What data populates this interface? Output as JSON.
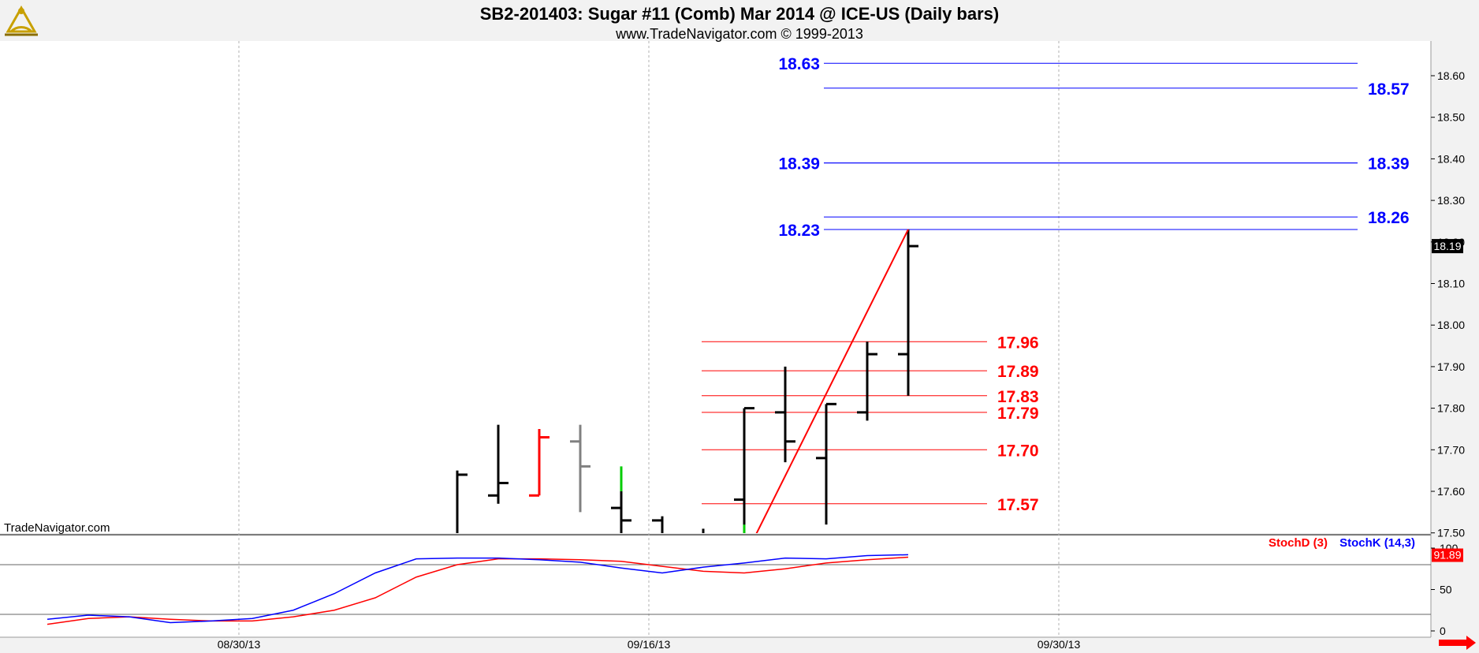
{
  "header": {
    "title": "SB2-201403:  Sugar #11 (Comb) Mar 2014 @ ICE-US  (Daily bars)",
    "subtitle": "www.TradeNavigator.com © 1999-2013"
  },
  "watermark": "TradeNavigator.com",
  "logo_icon": "sextant-logo-icon",
  "colors": {
    "up_bar": "#000000",
    "down_bar": "#ff0000",
    "neutral_bar": "#808080",
    "blue_level": "#0000ff",
    "red_level": "#ff0000",
    "stoch_k": "#0000ff",
    "stoch_d": "#ff0000",
    "last_price_bg": "#000000",
    "stoch_value_bg": "#ff0000"
  },
  "chart_data": [
    {
      "type": "bar",
      "subtype": "ohlc",
      "ylim": [
        17.48,
        18.68
      ],
      "y_ticks": [
        "17.50",
        "17.60",
        "17.70",
        "17.80",
        "17.90",
        "18.00",
        "18.10",
        "18.20",
        "18.30",
        "18.40",
        "18.50",
        "18.60"
      ],
      "x_tick_labels": [
        {
          "label": "08/30/13",
          "bar": 4
        },
        {
          "label": "09/16/13",
          "bar": 14
        },
        {
          "label": "09/30/13",
          "bar": 24
        }
      ],
      "last_price": "18.19",
      "bars": [
        {
          "i": 10,
          "o": 17.47,
          "h": 17.65,
          "l": 17.4,
          "c": 17.64,
          "color": "up"
        },
        {
          "i": 11,
          "o": 17.59,
          "h": 17.76,
          "l": 17.57,
          "c": 17.62,
          "color": "up"
        },
        {
          "i": 12,
          "o": 17.59,
          "h": 17.75,
          "l": 17.59,
          "c": 17.73,
          "color": "down"
        },
        {
          "i": 13,
          "o": 17.72,
          "h": 17.76,
          "l": 17.55,
          "c": 17.66,
          "color": "neutral"
        },
        {
          "i": 14,
          "o": 17.56,
          "h": 17.6,
          "l": 17.42,
          "c": 17.53,
          "color": "up"
        },
        {
          "i": 15,
          "o": 17.53,
          "h": 17.54,
          "l": 17.4,
          "c": 17.45,
          "color": "up"
        },
        {
          "i": 16,
          "o": 17.47,
          "h": 17.51,
          "l": 17.4,
          "c": 17.45,
          "color": "up"
        },
        {
          "i": 17,
          "o": 17.58,
          "h": 17.8,
          "l": 17.44,
          "c": 17.8,
          "color": "up"
        },
        {
          "i": 18,
          "o": 17.79,
          "h": 17.9,
          "l": 17.67,
          "c": 17.72,
          "color": "up"
        },
        {
          "i": 19,
          "o": 17.68,
          "h": 17.81,
          "l": 17.52,
          "c": 17.81,
          "color": "up"
        },
        {
          "i": 20,
          "o": 17.79,
          "h": 17.96,
          "l": 17.77,
          "c": 17.93,
          "color": "up"
        },
        {
          "i": 21,
          "o": 17.93,
          "h": 18.23,
          "l": 17.83,
          "c": 18.19,
          "color": "up"
        }
      ],
      "green_spikes": [
        {
          "i": 14,
          "low": 17.6,
          "high": 17.66
        },
        {
          "i": 17,
          "low": 17.4,
          "high": 17.52
        }
      ],
      "trend_line": {
        "from": {
          "bar": 16.8,
          "price": 17.4
        },
        "to": {
          "bar": 21,
          "price": 18.23
        }
      },
      "blue_levels_left": [
        {
          "value": 18.63,
          "label": "18.63"
        },
        {
          "value": 18.39,
          "label": "18.39"
        },
        {
          "value": 18.23,
          "label": "18.23"
        }
      ],
      "blue_levels_right": [
        {
          "value": 18.57,
          "label": "18.57"
        },
        {
          "value": 18.39,
          "label": "18.39"
        },
        {
          "value": 18.26,
          "label": "18.26"
        }
      ],
      "red_levels": [
        {
          "value": 17.96,
          "label": "17.96"
        },
        {
          "value": 17.89,
          "label": "17.89"
        },
        {
          "value": 17.83,
          "label": "17.83"
        },
        {
          "value": 17.79,
          "label": "17.79"
        },
        {
          "value": 17.7,
          "label": "17.70"
        },
        {
          "value": 17.57,
          "label": "17.57"
        }
      ]
    },
    {
      "type": "line",
      "ylim": [
        0,
        100
      ],
      "y_ticks": [
        "0",
        "50",
        "100"
      ],
      "reference_lines": [
        20,
        80
      ],
      "legend": "top-right",
      "last_value": "91.89",
      "x": [
        0,
        1,
        2,
        3,
        4,
        5,
        6,
        7,
        8,
        9,
        10,
        11,
        12,
        13,
        14,
        15,
        16,
        17,
        18,
        19,
        20,
        21
      ],
      "series": [
        {
          "name": "StochD (3)",
          "color": "red",
          "values": [
            8,
            15,
            17,
            14,
            12,
            12,
            17,
            25,
            40,
            65,
            80,
            87,
            87,
            86,
            84,
            78,
            72,
            70,
            75,
            82,
            86,
            89
          ]
        },
        {
          "name": "StochK (14,3)",
          "color": "blue",
          "values": [
            14,
            19,
            17,
            10,
            12,
            15,
            25,
            45,
            70,
            87,
            88,
            88,
            86,
            83,
            76,
            70,
            77,
            82,
            88,
            87,
            91,
            92
          ]
        }
      ]
    }
  ]
}
